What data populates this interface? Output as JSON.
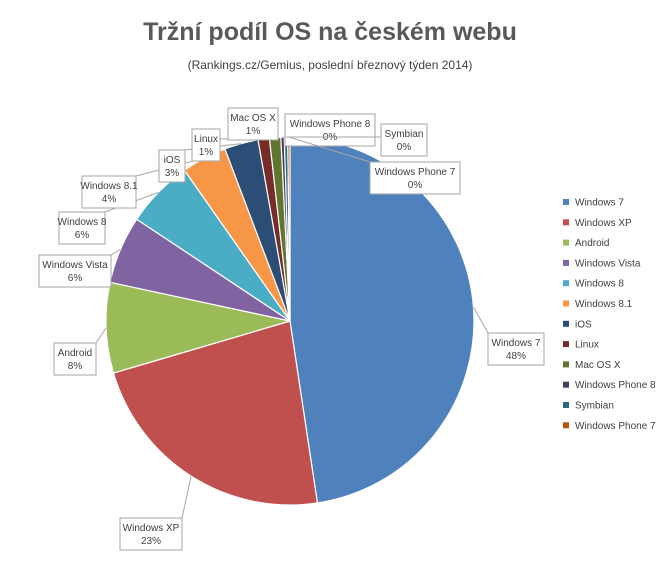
{
  "chart_data": {
    "type": "pie",
    "title": "Tržní podíl OS na českém webu",
    "subtitle": "(Rankings.cz/Gemius, poslední březnový týden 2014)",
    "legend_position": "right",
    "slices": [
      {
        "label": "Windows 7",
        "value": 48,
        "display": "48%",
        "color": "#4F81BD"
      },
      {
        "label": "Windows XP",
        "value": 23,
        "display": "23%",
        "color": "#C0504D"
      },
      {
        "label": "Android",
        "value": 8,
        "display": "8%",
        "color": "#9BBB59"
      },
      {
        "label": "Windows Vista",
        "value": 6,
        "display": "6%",
        "color": "#8064A2"
      },
      {
        "label": "Windows 8",
        "value": 6,
        "display": "6%",
        "color": "#4BACC6"
      },
      {
        "label": "Windows 8.1",
        "value": 4,
        "display": "4%",
        "color": "#F79646"
      },
      {
        "label": "iOS",
        "value": 3,
        "display": "3%",
        "color": "#2C4D75"
      },
      {
        "label": "Linux",
        "value": 1,
        "display": "1%",
        "color": "#772C2A"
      },
      {
        "label": "Mac OS X",
        "value": 1,
        "display": "1%",
        "color": "#5F7530"
      },
      {
        "label": "Windows Phone 8",
        "value": 0.3,
        "display": "0%",
        "color": "#4D3B62"
      },
      {
        "label": "Symbian",
        "value": 0.3,
        "display": "0%",
        "color": "#276A7C"
      },
      {
        "label": "Windows Phone 7",
        "value": 0.2,
        "display": "0%",
        "color": "#B65708"
      }
    ]
  }
}
